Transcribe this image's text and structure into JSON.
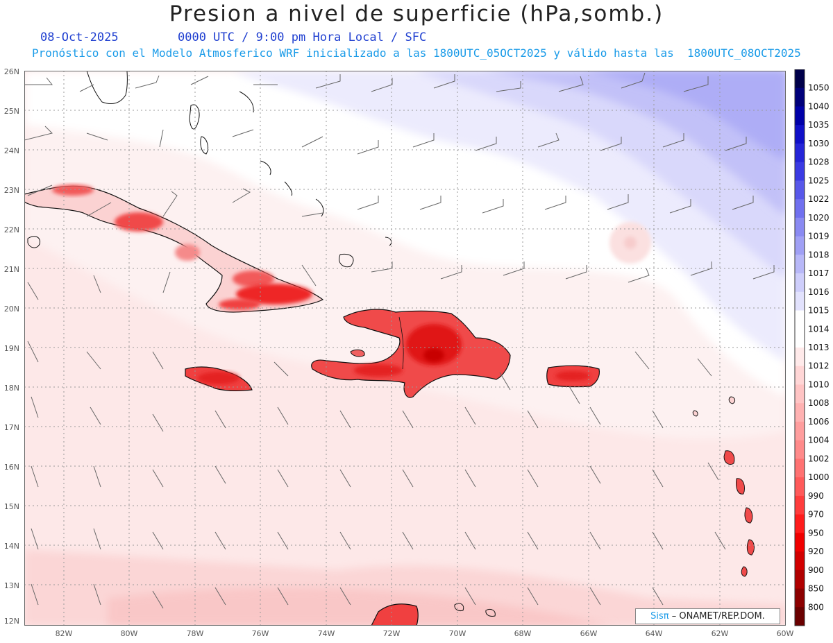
{
  "header": {
    "title": "Presion a nivel de superficie (hPa,somb.)",
    "date": "08-Oct-2025",
    "valid_time": "0000 UTC / 9:00 pm Hora Local / SFC",
    "model_line": "Pronóstico con el Modelo Atmosferico WRF inicializado a las 1800UTC_05OCT2025 y válido hasta las  1800UTC_08OCT2025"
  },
  "map": {
    "lat_labels": [
      "26N",
      "25N",
      "24N",
      "23N",
      "22N",
      "21N",
      "20N",
      "19N",
      "18N",
      "17N",
      "16N",
      "15N",
      "14N",
      "13N",
      "12N"
    ],
    "lon_labels": [
      "82W",
      "80W",
      "78W",
      "76W",
      "74W",
      "72W",
      "70W",
      "68W",
      "66W",
      "64W",
      "62W",
      "60W"
    ],
    "lat_range": [
      12,
      26
    ],
    "lon_range": [
      -83.2,
      -60
    ],
    "gridlines": true
  },
  "colorbar": {
    "levels": [
      "1050",
      "1040",
      "1035",
      "1030",
      "1028",
      "1025",
      "1022",
      "1020",
      "1019",
      "1018",
      "1017",
      "1016",
      "1015",
      "1014",
      "1013",
      "1012",
      "1010",
      "1008",
      "1006",
      "1004",
      "1002",
      "1000",
      "990",
      "970",
      "950",
      "920",
      "900",
      "850",
      "800"
    ],
    "colors": [
      "#00004a",
      "#00007a",
      "#0000a8",
      "#1010c8",
      "#2525d8",
      "#3a3ae3",
      "#5858ea",
      "#7070ef",
      "#8a8af2",
      "#a0a0f5",
      "#b8b8f8",
      "#cecefb",
      "#e2e2fd",
      "#ffffff",
      "#ffffff",
      "#ffeaea",
      "#ffd6d6",
      "#ffc4c4",
      "#ffb2b2",
      "#ff9e9e",
      "#ff8a8a",
      "#ff7272",
      "#ff5a5a",
      "#ff3c3c",
      "#ff1c1c",
      "#f00000",
      "#d20000",
      "#b00000",
      "#8c0000",
      "#6a0000"
    ]
  },
  "credit": {
    "logo": "Sisπ",
    "text": "– ONAMET/REP.DOM."
  }
}
